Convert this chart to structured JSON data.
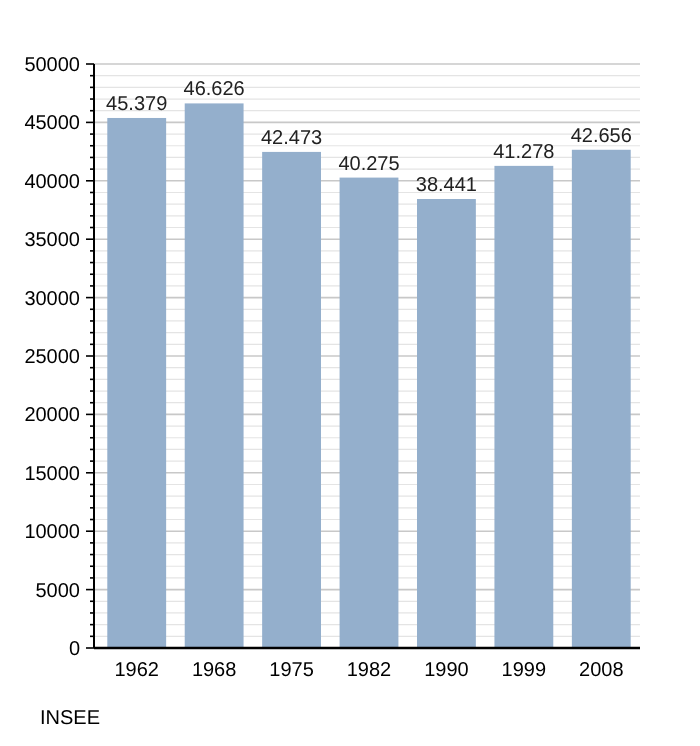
{
  "chart_data": {
    "type": "bar",
    "categories": [
      "1962",
      "1968",
      "1975",
      "1982",
      "1990",
      "1999",
      "2008"
    ],
    "values": [
      45379,
      46626,
      42473,
      40275,
      38441,
      41278,
      42656
    ],
    "value_labels": [
      "45.379",
      "46.626",
      "42.473",
      "40.275",
      "38.441",
      "41.278",
      "42.656"
    ],
    "color": "#94afcc",
    "ylim": [
      0,
      50000
    ],
    "yticks": [
      0,
      {
        "value": 1000,
        "label": null
      },
      {
        "value": 2000,
        "label": null
      },
      {
        "value": 3000,
        "label": null
      },
      {
        "value": 4000,
        "label": null
      },
      5000,
      {
        "value": 6000,
        "label": null
      },
      {
        "value": 7000,
        "label": null
      },
      {
        "value": 8000,
        "label": null
      },
      {
        "value": 9000,
        "label": null
      },
      10000,
      {
        "value": 11000,
        "label": null
      },
      {
        "value": 12000,
        "label": null
      },
      {
        "value": 13000,
        "label": null
      },
      {
        "value": 14000,
        "label": null
      },
      15000,
      {
        "value": 16000,
        "label": null
      },
      {
        "value": 17000,
        "label": null
      },
      {
        "value": 18000,
        "label": null
      },
      {
        "value": 19000,
        "label": null
      },
      20000,
      {
        "value": 21000,
        "label": null
      },
      {
        "value": 22000,
        "label": null
      },
      {
        "value": 23000,
        "label": null
      },
      {
        "value": 24000,
        "label": null
      },
      25000,
      {
        "value": 26000,
        "label": null
      },
      {
        "value": 27000,
        "label": null
      },
      {
        "value": 28000,
        "label": null
      },
      {
        "value": 29000,
        "label": null
      },
      30000,
      {
        "value": 31000,
        "label": null
      },
      {
        "value": 32000,
        "label": null
      },
      {
        "value": 33000,
        "label": null
      },
      {
        "value": 34000,
        "label": null
      },
      35000,
      {
        "value": 36000,
        "label": null
      },
      {
        "value": 37000,
        "label": null
      },
      {
        "value": 38000,
        "label": null
      },
      {
        "value": 39000,
        "label": null
      },
      40000,
      {
        "value": 41000,
        "label": null
      },
      {
        "value": 42000,
        "label": null
      },
      {
        "value": 43000,
        "label": null
      },
      {
        "value": 44000,
        "label": null
      },
      45000,
      {
        "value": 46000,
        "label": null
      },
      {
        "value": 47000,
        "label": null
      },
      {
        "value": 48000,
        "label": null
      },
      {
        "value": 49000,
        "label": null
      },
      50000
    ],
    "grid": "y",
    "annotations": [
      "INSEE"
    ]
  }
}
